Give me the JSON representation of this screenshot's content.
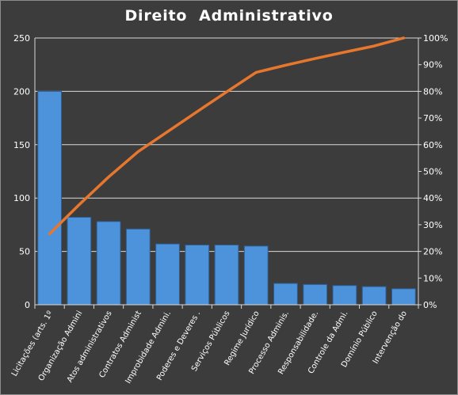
{
  "chart_data": {
    "type": "bar",
    "title": "Direito  Administrativo",
    "categories": [
      "Licitações (arts. 1º",
      "Organização Admini",
      "Atos administrativos",
      "Contratos Administ",
      "Improbidade Admini.",
      "Poderes e Deveres .",
      "Serviços Públicos",
      "Regime Jurídico",
      "Processo Adminis.",
      "Responsabilidade.",
      "Controle da Admi.",
      "Domínio Público",
      "Intervenção do"
    ],
    "series": [
      {
        "type": "bar",
        "values": [
          200,
          82,
          78,
          71,
          57,
          56,
          56,
          55,
          20,
          19,
          18,
          17,
          15
        ]
      },
      {
        "type": "line",
        "axis": "secondary",
        "values": [
          26.6,
          37.5,
          47.9,
          57.4,
          64.9,
          72.4,
          79.8,
          87.1,
          89.8,
          92.3,
          94.7,
          97.0,
          100.0
        ]
      }
    ],
    "y_ticks": [
      "0",
      "50",
      "100",
      "150",
      "200",
      "250"
    ],
    "y2_ticks": [
      "0%",
      "10%",
      "20%",
      "30%",
      "40%",
      "50%",
      "60%",
      "70%",
      "80%",
      "90%",
      "100%"
    ],
    "ylim": [
      0,
      250
    ],
    "y2lim": [
      0,
      100
    ],
    "grid": true,
    "legend": "none",
    "colors": {
      "background": "#3c3c3c",
      "bar_fill": "#4d93dc",
      "line": "#e8772e",
      "grid": "#d9d9d9",
      "text": "#ffffff"
    }
  }
}
